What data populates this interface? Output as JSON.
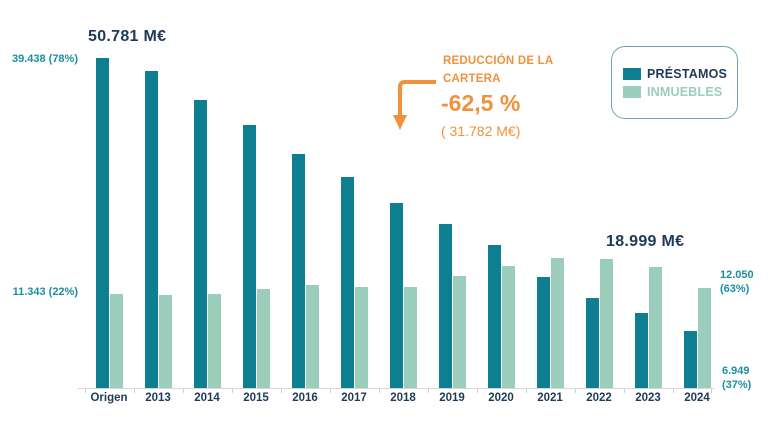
{
  "chart_data": {
    "type": "bar",
    "title": "",
    "units": "M€",
    "categories": [
      "Origen",
      "2013",
      "2014",
      "2015",
      "2016",
      "2017",
      "2018",
      "2019",
      "2020",
      "2021",
      "2022",
      "2023",
      "2024"
    ],
    "series": [
      {
        "name": "PRÉSTAMOS",
        "color": "#0E7F90",
        "values": [
          39438,
          37900,
          34400,
          31400,
          28000,
          25200,
          22200,
          19600,
          17100,
          13400,
          10900,
          9100,
          6949
        ]
      },
      {
        "name": "INMUEBLES",
        "color": "#9BCEBA",
        "values": [
          11343,
          11200,
          11300,
          11900,
          12400,
          12200,
          12200,
          13500,
          14700,
          15600,
          15500,
          14500,
          12050
        ]
      }
    ],
    "ylim": [
      0,
      42000
    ],
    "grid": false,
    "legend_position": "top-right"
  },
  "annotations": {
    "origin_total": "50.781 M€",
    "origin_prestamos_split": "39.438 (78%)",
    "origin_inmuebles_split": "11.343 (22%)",
    "final_total": "18.999 M€",
    "final_inmuebles_split": "12.050 (63%)",
    "final_prestamos_split": "6.949 (37%)",
    "reduction_label": "REDUCCIÓN DE LA CARTERA",
    "reduction_percent": "-62,5 %",
    "reduction_amount": "( 31.782 M€)"
  },
  "legend": {
    "items": [
      {
        "label": "PRÉSTAMOS",
        "color": "#0E7F90",
        "text_color": "#1E3A5A"
      },
      {
        "label": "INMUEBLES",
        "color": "#9BCEBA",
        "text_color": "#9BCEBA"
      }
    ]
  },
  "colors": {
    "prestamos": "#0E7F90",
    "inmuebles": "#9BCEBA",
    "navy_text": "#1E3A5A",
    "teal_text": "#1B8FA0",
    "orange": "#F0913C",
    "axis_line": "#D9D9D9"
  }
}
